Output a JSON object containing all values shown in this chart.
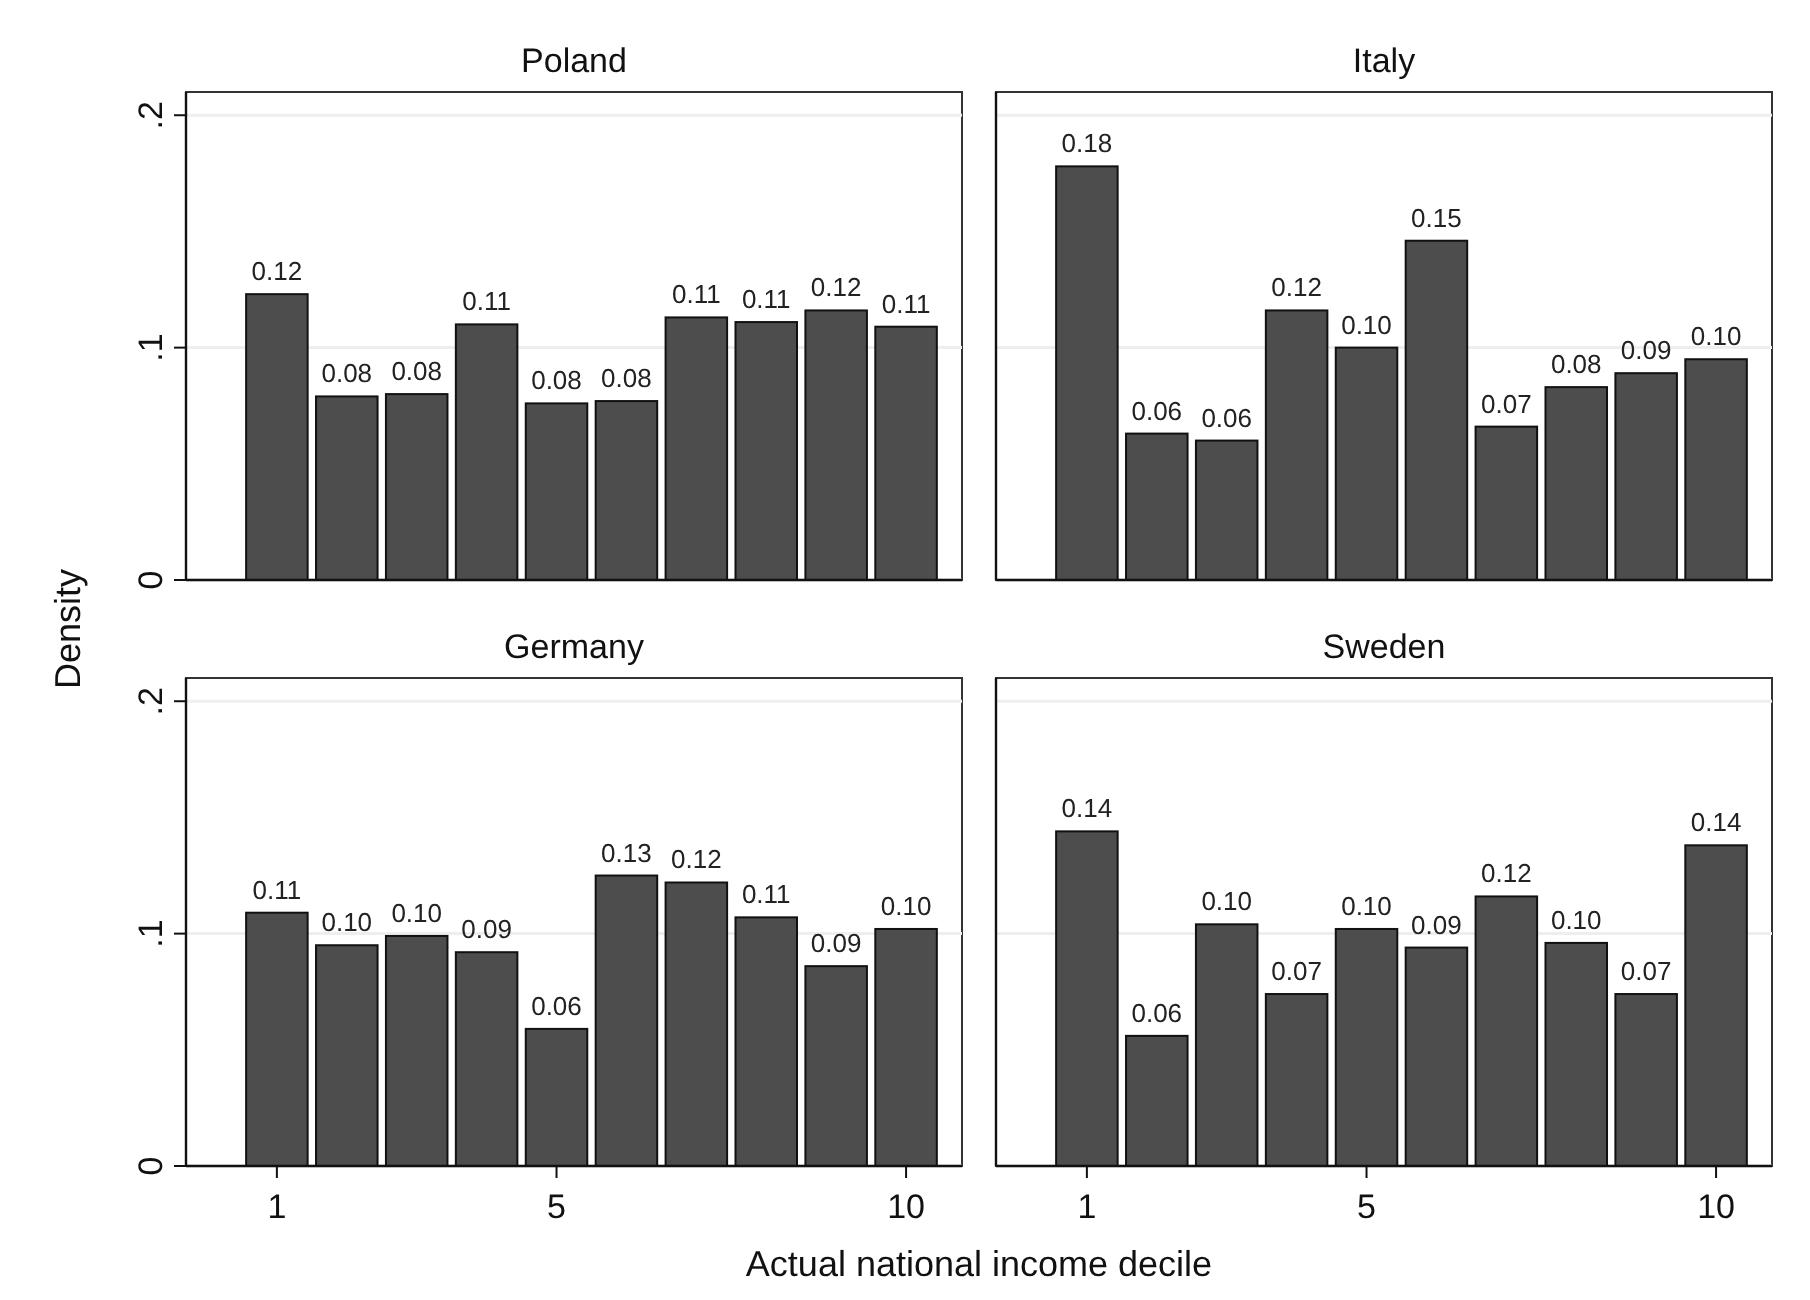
{
  "chart_data": [
    {
      "type": "bar",
      "title": "Poland",
      "ylabel": "Density",
      "x": [
        1,
        2,
        3,
        4,
        5,
        6,
        7,
        8,
        9,
        10
      ],
      "values": [
        0.123,
        0.079,
        0.08,
        0.11,
        0.076,
        0.077,
        0.113,
        0.111,
        0.116,
        0.109
      ],
      "value_labels": [
        "0.12",
        "0.08",
        "0.08",
        "0.11",
        "0.08",
        "0.08",
        "0.11",
        "0.11",
        "0.12",
        "0.11"
      ],
      "color": "#4d4d4d",
      "xlim": [
        -0.3,
        10.8
      ],
      "ylim": [
        0,
        0.21
      ],
      "yticks": [
        {
          "value": 0,
          "label": "0"
        },
        {
          "value": 0.1,
          "label": ".1"
        },
        {
          "value": 0.2,
          "label": ".2"
        }
      ],
      "xticks": [
        1,
        5,
        10
      ],
      "grid": "y",
      "tick_labels": "y"
    },
    {
      "type": "bar",
      "title": "Italy",
      "x": [
        1,
        2,
        3,
        4,
        5,
        6,
        7,
        8,
        9,
        10
      ],
      "values": [
        0.178,
        0.063,
        0.06,
        0.116,
        0.1,
        0.146,
        0.066,
        0.083,
        0.089,
        0.095
      ],
      "value_labels": [
        "0.18",
        "0.06",
        "0.06",
        "0.12",
        "0.10",
        "0.15",
        "0.07",
        "0.08",
        "0.09",
        "0.10"
      ],
      "color": "#4d4d4d",
      "xlim": [
        -0.3,
        10.8
      ],
      "ylim": [
        0,
        0.21
      ],
      "yticks": [
        0,
        0.1,
        0.2
      ],
      "xticks": [
        1,
        5,
        10
      ],
      "grid": "y",
      "tick_labels": false
    },
    {
      "type": "bar",
      "title": "Germany",
      "xlabel": "Actual national income decile",
      "x": [
        1,
        2,
        3,
        4,
        5,
        6,
        7,
        8,
        9,
        10
      ],
      "values": [
        0.109,
        0.095,
        0.099,
        0.092,
        0.059,
        0.125,
        0.122,
        0.107,
        0.086,
        0.102
      ],
      "value_labels": [
        "0.11",
        "0.10",
        "0.10",
        "0.09",
        "0.06",
        "0.13",
        "0.12",
        "0.11",
        "0.09",
        "0.10"
      ],
      "color": "#4d4d4d",
      "xlim": [
        -0.3,
        10.8
      ],
      "ylim": [
        0,
        0.21
      ],
      "yticks": [
        {
          "value": 0,
          "label": "0"
        },
        {
          "value": 0.1,
          "label": ".1"
        },
        {
          "value": 0.2,
          "label": ".2"
        }
      ],
      "xticks": [
        1,
        5,
        10
      ],
      "grid": "y"
    },
    {
      "type": "bar",
      "title": "Sweden",
      "x": [
        1,
        2,
        3,
        4,
        5,
        6,
        7,
        8,
        9,
        10
      ],
      "values": [
        0.144,
        0.056,
        0.104,
        0.074,
        0.102,
        0.094,
        0.116,
        0.096,
        0.074,
        0.138
      ],
      "value_labels": [
        "0.14",
        "0.06",
        "0.10",
        "0.07",
        "0.10",
        "0.09",
        "0.12",
        "0.10",
        "0.07",
        "0.14"
      ],
      "color": "#4d4d4d",
      "xlim": [
        -0.3,
        10.8
      ],
      "ylim": [
        0,
        0.21
      ],
      "yticks": [
        0,
        0.1,
        0.2
      ],
      "xticks": [
        1,
        5,
        10
      ],
      "grid": "y",
      "tick_labels": "x"
    }
  ]
}
